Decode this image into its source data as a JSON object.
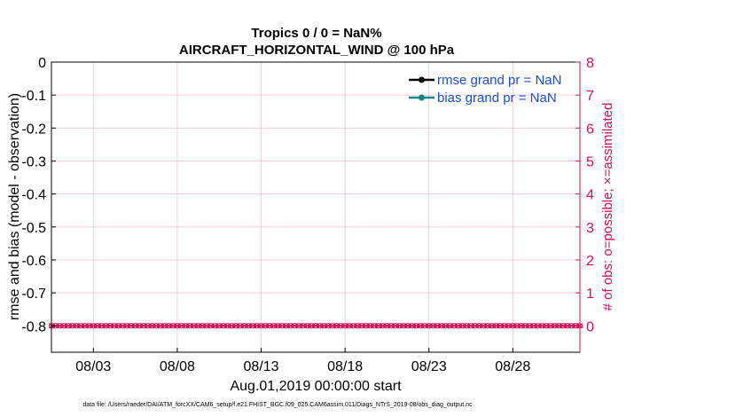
{
  "chart_data": {
    "type": "line",
    "title_line1": "Tropics 0 / 0 = NaN%",
    "title_line2": "AIRCRAFT_HORIZONTAL_WIND @ 100 hPa",
    "xlabel": "Aug.01,2019 00:00:00 start",
    "ylabel_left": "rmse and bias (model - observation)",
    "ylabel_right": "# of obs: o=possible; ×=assimilated",
    "x_range": [
      0.5,
      32.0
    ],
    "x_ticks": [
      {
        "x": 3,
        "label": "08/03"
      },
      {
        "x": 8,
        "label": "08/08"
      },
      {
        "x": 13,
        "label": "08/13"
      },
      {
        "x": 18,
        "label": "08/18"
      },
      {
        "x": 23,
        "label": "08/23"
      },
      {
        "x": 28,
        "label": "08/28"
      }
    ],
    "ylim_left": [
      -0.88,
      0
    ],
    "left_ticks": [
      "0",
      "-0.1",
      "-0.2",
      "-0.3",
      "-0.4",
      "-0.5",
      "-0.6",
      "-0.7",
      "-0.8"
    ],
    "left_tick_values": [
      0,
      -0.1,
      -0.2,
      -0.3,
      -0.4,
      -0.5,
      -0.6,
      -0.7,
      -0.8
    ],
    "ylim_right": [
      -0.8,
      8
    ],
    "right_ticks": [
      "0",
      "1",
      "2",
      "3",
      "4",
      "5",
      "6",
      "7",
      "8"
    ],
    "right_tick_values": [
      0,
      1,
      2,
      3,
      4,
      5,
      6,
      7,
      8
    ],
    "legend": [
      {
        "label": "rmse grand pr = NaN",
        "color": "#000000"
      },
      {
        "label": "bias grand pr = NaN",
        "color": "#138585"
      }
    ],
    "series": [
      {
        "name": "obs possible",
        "axis": "right",
        "marker": "o",
        "color": "#d0105a",
        "x_start": 0.5,
        "x_end": 32.0,
        "x_step": 0.25,
        "value": 0
      },
      {
        "name": "obs assimilated",
        "axis": "right",
        "marker": "x",
        "color": "#d0105a",
        "x_start": 0.5,
        "x_end": 32.0,
        "x_step": 0.25,
        "value": 0
      }
    ]
  },
  "footer": "data file: /Users/raeder/DAI/ATM_forcXX/CAM6_setup/f.e21.FHIST_BGC.f09_025.CAM6assim.011/Diags_NTrS_2019-08/obs_diag_output.nc"
}
